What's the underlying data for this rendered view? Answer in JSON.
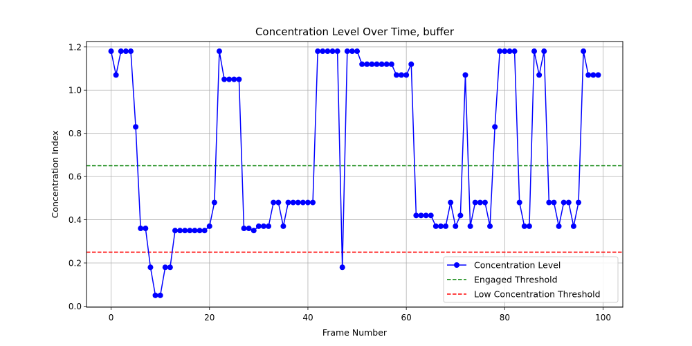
{
  "chart_data": {
    "type": "line",
    "title": "Concentration Level Over Time, buffer",
    "xlabel": "Frame Number",
    "ylabel": "Concentration Index",
    "xlim": [
      -5,
      104
    ],
    "ylim": [
      -0.005,
      1.225
    ],
    "xticks": [
      0,
      20,
      40,
      60,
      80,
      100
    ],
    "yticks": [
      0.0,
      0.2,
      0.4,
      0.6,
      0.8,
      1.0,
      1.2
    ],
    "grid": true,
    "legend_position": "bottom-right",
    "series": [
      {
        "name": "Concentration Level",
        "color": "#0000ff",
        "marker": "circle",
        "x": [
          0,
          1,
          2,
          3,
          4,
          5,
          6,
          7,
          8,
          9,
          10,
          11,
          12,
          13,
          14,
          15,
          16,
          17,
          18,
          19,
          20,
          21,
          22,
          23,
          24,
          25,
          26,
          27,
          28,
          29,
          30,
          31,
          32,
          33,
          34,
          35,
          36,
          37,
          38,
          39,
          40,
          41,
          42,
          43,
          44,
          45,
          46,
          47,
          48,
          49,
          50,
          51,
          52,
          53,
          54,
          55,
          56,
          57,
          58,
          59,
          60,
          61,
          62,
          63,
          64,
          65,
          66,
          67,
          68,
          69,
          70,
          71,
          72,
          73,
          74,
          75,
          76,
          77,
          78,
          79,
          80,
          81,
          82,
          83,
          84,
          85,
          86,
          87,
          88,
          89,
          90,
          91,
          92,
          93,
          94,
          95,
          96,
          97,
          98,
          99
        ],
        "values": [
          1.18,
          1.07,
          1.18,
          1.18,
          1.18,
          0.83,
          0.36,
          0.36,
          0.18,
          0.05,
          0.05,
          0.18,
          0.18,
          0.35,
          0.35,
          0.35,
          0.35,
          0.35,
          0.35,
          0.35,
          0.37,
          0.48,
          1.18,
          1.05,
          1.05,
          1.05,
          1.05,
          0.36,
          0.36,
          0.35,
          0.37,
          0.37,
          0.37,
          0.48,
          0.48,
          0.37,
          0.48,
          0.48,
          0.48,
          0.48,
          0.48,
          0.48,
          1.18,
          1.18,
          1.18,
          1.18,
          1.18,
          0.18,
          1.18,
          1.18,
          1.18,
          1.12,
          1.12,
          1.12,
          1.12,
          1.12,
          1.12,
          1.12,
          1.07,
          1.07,
          1.07,
          1.12,
          0.42,
          0.42,
          0.42,
          0.42,
          0.37,
          0.37,
          0.37,
          0.48,
          0.37,
          0.42,
          1.07,
          0.37,
          0.48,
          0.48,
          0.48,
          0.37,
          0.83,
          1.18,
          1.18,
          1.18,
          1.18,
          0.48,
          0.37,
          0.37,
          1.18,
          1.07,
          1.18,
          0.48,
          0.48,
          0.37,
          0.48,
          0.48,
          0.37,
          0.48,
          1.18,
          1.07,
          1.07,
          1.07
        ]
      }
    ],
    "thresholds": [
      {
        "name": "Engaged Threshold",
        "value": 0.65,
        "color": "#008000",
        "style": "dashed"
      },
      {
        "name": "Low Concentration Threshold",
        "value": 0.25,
        "color": "#ff0000",
        "style": "dashed"
      }
    ]
  }
}
